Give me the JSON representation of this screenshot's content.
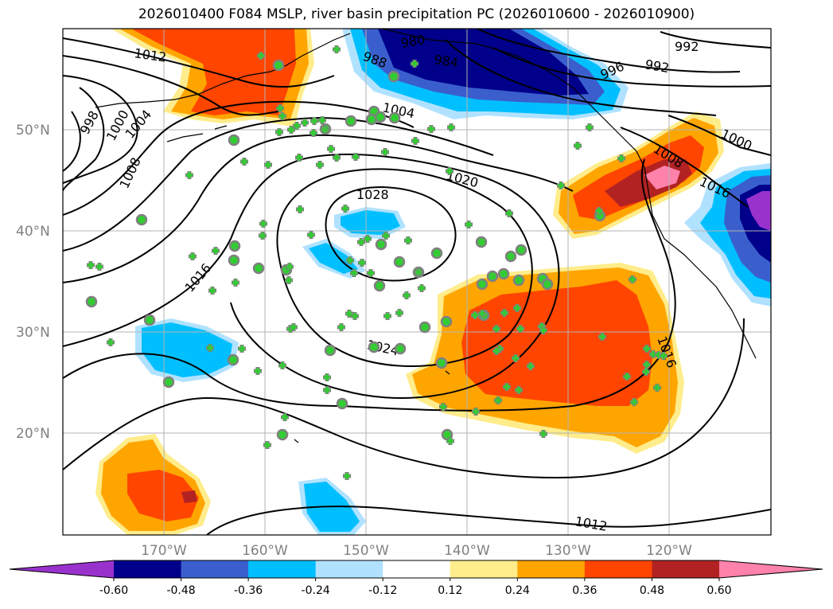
{
  "title": "2026010400 F084 MSLP, river basin precipitation PC (2026010600 - 2026010900)",
  "lat_labels": [
    "50°N",
    "40°N",
    "30°N",
    "20°N"
  ],
  "lon_labels": [
    "170°W",
    "160°W",
    "150°W",
    "140°W",
    "130°W",
    "120°W"
  ],
  "contour_labels": [
    "1012",
    "998",
    "1000",
    "1004",
    "1008",
    "980",
    "988",
    "984",
    "992",
    "996",
    "992",
    "1004",
    "1020",
    "1028",
    "1016",
    "1024",
    "1016",
    "1000",
    "1008",
    "1016",
    "1012"
  ],
  "colorbar": {
    "ticks": [
      "-0.60",
      "-0.48",
      "-0.36",
      "-0.24",
      "-0.12",
      "0.12",
      "0.24",
      "0.36",
      "0.48",
      "0.60"
    ],
    "colors": [
      "#9932cc",
      "#00008b",
      "#3a5fcd",
      "#00bfff",
      "#b0e2ff",
      "#ffffff",
      "#ffec8b",
      "#ffa500",
      "#ff4500",
      "#b22222",
      "#ff82ab"
    ]
  }
}
